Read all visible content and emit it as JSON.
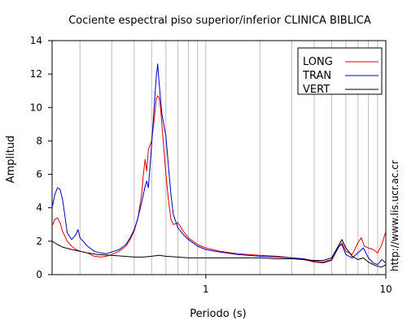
{
  "chart_data": {
    "type": "line",
    "title": "Cociente espectral piso superior/inferior  CLINICA BIBLICA",
    "xlabel": "Periodo (s)",
    "ylabel": "Amplitud",
    "x_scale": "log",
    "xlim": [
      0.14,
      10
    ],
    "ylim": [
      0,
      14
    ],
    "xticks": [
      {
        "value": 1,
        "label": "1"
      },
      {
        "value": 10,
        "label": "10"
      }
    ],
    "yticks": [
      0,
      2,
      4,
      6,
      8,
      10,
      12,
      14
    ],
    "grid": "vertical log gridlines",
    "legend_position": "top-right",
    "annotation": "http://www.lis.ucr.ac.cr",
    "series": [
      {
        "name": "LONG",
        "color": "#e00000",
        "points": [
          [
            0.14,
            2.9
          ],
          [
            0.145,
            3.3
          ],
          [
            0.15,
            3.4
          ],
          [
            0.155,
            3.1
          ],
          [
            0.16,
            2.6
          ],
          [
            0.17,
            2.0
          ],
          [
            0.18,
            1.7
          ],
          [
            0.19,
            1.5
          ],
          [
            0.2,
            1.4
          ],
          [
            0.22,
            1.3
          ],
          [
            0.24,
            1.1
          ],
          [
            0.26,
            1.05
          ],
          [
            0.28,
            1.1
          ],
          [
            0.3,
            1.2
          ],
          [
            0.33,
            1.4
          ],
          [
            0.36,
            1.7
          ],
          [
            0.38,
            2.1
          ],
          [
            0.4,
            2.6
          ],
          [
            0.42,
            3.4
          ],
          [
            0.44,
            4.8
          ],
          [
            0.45,
            6.0
          ],
          [
            0.46,
            6.9
          ],
          [
            0.47,
            6.2
          ],
          [
            0.48,
            7.5
          ],
          [
            0.5,
            8.0
          ],
          [
            0.52,
            9.5
          ],
          [
            0.53,
            10.5
          ],
          [
            0.54,
            10.7
          ],
          [
            0.55,
            10.6
          ],
          [
            0.56,
            10.0
          ],
          [
            0.58,
            8.0
          ],
          [
            0.6,
            6.0
          ],
          [
            0.62,
            4.5
          ],
          [
            0.64,
            3.3
          ],
          [
            0.66,
            3.0
          ],
          [
            0.7,
            3.1
          ],
          [
            0.75,
            2.6
          ],
          [
            0.8,
            2.2
          ],
          [
            0.9,
            1.8
          ],
          [
            1.0,
            1.6
          ],
          [
            1.2,
            1.4
          ],
          [
            1.5,
            1.25
          ],
          [
            2.0,
            1.15
          ],
          [
            2.5,
            1.1
          ],
          [
            3.0,
            1.0
          ],
          [
            3.5,
            0.9
          ],
          [
            4.0,
            0.75
          ],
          [
            4.5,
            0.7
          ],
          [
            5.0,
            0.85
          ],
          [
            5.5,
            1.7
          ],
          [
            5.7,
            1.9
          ],
          [
            6.0,
            1.4
          ],
          [
            6.5,
            1.2
          ],
          [
            7.0,
            1.9
          ],
          [
            7.3,
            2.2
          ],
          [
            7.6,
            1.7
          ],
          [
            8.0,
            1.6
          ],
          [
            8.5,
            1.5
          ],
          [
            9.0,
            1.3
          ],
          [
            9.5,
            1.8
          ],
          [
            10.0,
            2.6
          ]
        ]
      },
      {
        "name": "TRAN",
        "color": "#0000c0",
        "points": [
          [
            0.14,
            4.0
          ],
          [
            0.145,
            4.8
          ],
          [
            0.15,
            5.2
          ],
          [
            0.155,
            5.1
          ],
          [
            0.16,
            4.5
          ],
          [
            0.165,
            3.5
          ],
          [
            0.17,
            2.5
          ],
          [
            0.18,
            2.1
          ],
          [
            0.19,
            2.4
          ],
          [
            0.195,
            2.7
          ],
          [
            0.2,
            2.2
          ],
          [
            0.22,
            1.7
          ],
          [
            0.24,
            1.4
          ],
          [
            0.26,
            1.3
          ],
          [
            0.28,
            1.25
          ],
          [
            0.3,
            1.35
          ],
          [
            0.33,
            1.5
          ],
          [
            0.36,
            1.8
          ],
          [
            0.38,
            2.2
          ],
          [
            0.4,
            2.7
          ],
          [
            0.42,
            3.4
          ],
          [
            0.44,
            4.3
          ],
          [
            0.46,
            5.3
          ],
          [
            0.47,
            5.6
          ],
          [
            0.48,
            5.2
          ],
          [
            0.5,
            7.8
          ],
          [
            0.52,
            10.5
          ],
          [
            0.53,
            11.8
          ],
          [
            0.54,
            12.6
          ],
          [
            0.55,
            11.5
          ],
          [
            0.57,
            9.6
          ],
          [
            0.6,
            8.3
          ],
          [
            0.62,
            6.5
          ],
          [
            0.64,
            4.8
          ],
          [
            0.66,
            3.6
          ],
          [
            0.7,
            2.8
          ],
          [
            0.75,
            2.4
          ],
          [
            0.8,
            2.1
          ],
          [
            0.9,
            1.7
          ],
          [
            1.0,
            1.5
          ],
          [
            1.2,
            1.35
          ],
          [
            1.5,
            1.2
          ],
          [
            2.0,
            1.1
          ],
          [
            2.5,
            1.05
          ],
          [
            3.0,
            1.0
          ],
          [
            3.5,
            0.95
          ],
          [
            4.0,
            0.8
          ],
          [
            4.5,
            0.75
          ],
          [
            5.0,
            0.9
          ],
          [
            5.5,
            1.7
          ],
          [
            5.7,
            1.8
          ],
          [
            6.0,
            1.2
          ],
          [
            6.5,
            1.0
          ],
          [
            7.0,
            1.3
          ],
          [
            7.5,
            1.6
          ],
          [
            8.0,
            1.0
          ],
          [
            8.5,
            0.7
          ],
          [
            9.0,
            0.6
          ],
          [
            9.5,
            0.9
          ],
          [
            10.0,
            0.7
          ]
        ]
      },
      {
        "name": "VERT",
        "color": "#000000",
        "points": [
          [
            0.14,
            2.0
          ],
          [
            0.15,
            1.8
          ],
          [
            0.16,
            1.65
          ],
          [
            0.18,
            1.5
          ],
          [
            0.2,
            1.4
          ],
          [
            0.22,
            1.3
          ],
          [
            0.25,
            1.2
          ],
          [
            0.3,
            1.15
          ],
          [
            0.35,
            1.1
          ],
          [
            0.4,
            1.05
          ],
          [
            0.45,
            1.05
          ],
          [
            0.5,
            1.1
          ],
          [
            0.55,
            1.15
          ],
          [
            0.6,
            1.1
          ],
          [
            0.7,
            1.05
          ],
          [
            0.8,
            1.0
          ],
          [
            1.0,
            1.0
          ],
          [
            1.5,
            1.0
          ],
          [
            2.0,
            1.0
          ],
          [
            2.5,
            0.95
          ],
          [
            3.0,
            0.95
          ],
          [
            3.5,
            0.9
          ],
          [
            4.0,
            0.85
          ],
          [
            4.5,
            0.85
          ],
          [
            5.0,
            1.0
          ],
          [
            5.5,
            1.8
          ],
          [
            5.7,
            2.1
          ],
          [
            6.0,
            1.6
          ],
          [
            6.5,
            1.1
          ],
          [
            7.0,
            0.9
          ],
          [
            7.5,
            1.0
          ],
          [
            8.0,
            0.75
          ],
          [
            8.5,
            0.6
          ],
          [
            9.0,
            0.5
          ],
          [
            9.5,
            0.45
          ],
          [
            10.0,
            0.6
          ]
        ]
      }
    ]
  }
}
